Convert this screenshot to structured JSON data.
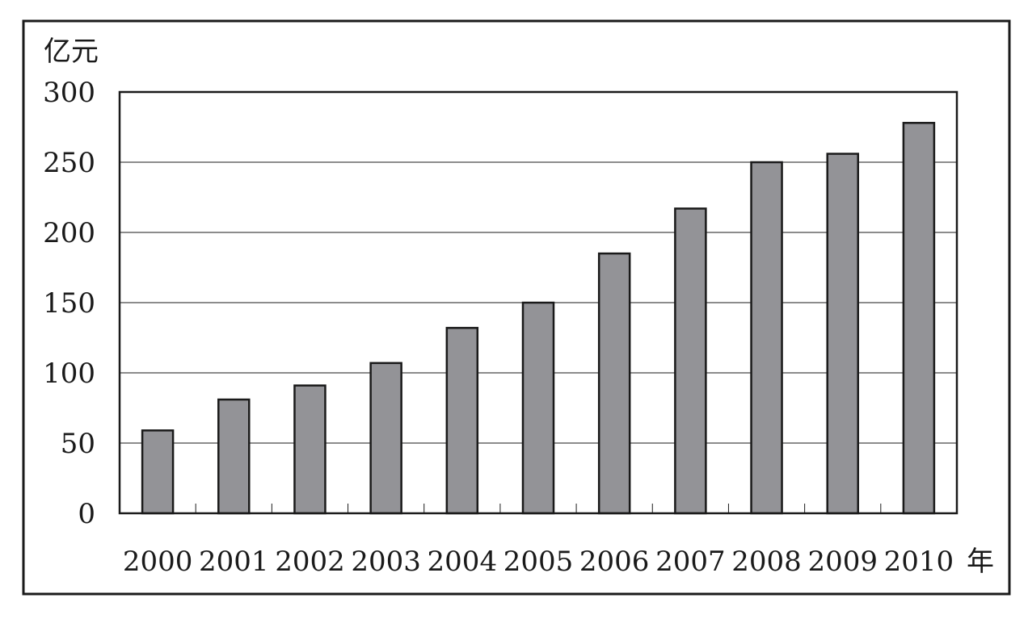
{
  "chart_data": {
    "type": "bar",
    "ylabel": "亿元",
    "xlabel": "年",
    "categories": [
      "2000",
      "2001",
      "2002",
      "2003",
      "2004",
      "2005",
      "2006",
      "2007",
      "2008",
      "2009",
      "2010"
    ],
    "values": [
      59,
      81,
      91,
      107,
      132,
      150,
      185,
      217,
      250,
      256,
      278
    ],
    "ylim": [
      0,
      300
    ],
    "yticks": [
      0,
      50,
      100,
      150,
      200,
      250,
      300
    ],
    "grid": true,
    "legend": "none",
    "colors": {
      "bar_fill": "#939397",
      "bar_stroke": "#1a1a1a",
      "axis": "#1a1a1a",
      "grid": "#1a1a1a",
      "frame": "#1a1a1a"
    }
  }
}
